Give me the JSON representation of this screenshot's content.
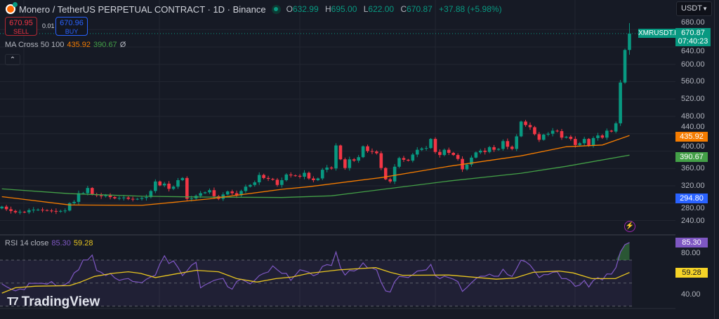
{
  "header": {
    "title": "Monero / TetherUS PERPETUAL CONTRACT · 1D · Binance",
    "ohlc": {
      "o_label": "O",
      "o": "632.99",
      "h_label": "H",
      "h": "695.00",
      "l_label": "L",
      "l": "622.00",
      "c_label": "C",
      "c": "670.87",
      "change": "+37.88 (+5.98%)"
    }
  },
  "trade": {
    "sell_price": "670.95",
    "sell_label": "SELL",
    "spread": "0.01",
    "buy_price": "670.96",
    "buy_label": "BUY"
  },
  "indicators": {
    "ma_label": "MA Cross 50 100",
    "ma50": "435.92",
    "ma100": "390.67",
    "ma_extra": "Ø",
    "rsi_label": "RSI 14 close",
    "rsi": "85.30",
    "rsi_ma": "59.28"
  },
  "collapse_icon": "chevron-up-icon",
  "currency": "USDT",
  "price_tag": {
    "symbol": "XMRUSDT.P",
    "price": "670.87",
    "countdown": "07:40:23"
  },
  "badges": {
    "ma50": "435.92",
    "ma100": "390.67",
    "blue": "294.80",
    "rsi": "85.30",
    "rsi_ma": "59.28"
  },
  "watermark": "TradingView",
  "colors": {
    "up": "#089981",
    "down": "#f23645",
    "ma50": "#f57c00",
    "ma100": "#43a047",
    "rsi": "#7e57c2",
    "rsi_ma": "#e8c520",
    "background": "#161a25"
  },
  "chart_data": {
    "type": "candlestick",
    "grid": true,
    "price_axis": {
      "ticks": [
        "680.00",
        "640.00",
        "600.00",
        "560.00",
        "520.00",
        "480.00",
        "440.00",
        "400.00",
        "360.00",
        "320.00",
        "280.00",
        "240.00"
      ],
      "ylim": [
        230,
        700
      ]
    },
    "first_open": 268,
    "closes": [
      272,
      266,
      262,
      259,
      260,
      259,
      264,
      265,
      265,
      264,
      263,
      262,
      261,
      262,
      263,
      280,
      283,
      303,
      303,
      315,
      300,
      298,
      296,
      298,
      294,
      291,
      292,
      293,
      290,
      289,
      290,
      292,
      294,
      308,
      330,
      321,
      325,
      313,
      318,
      333,
      338,
      290,
      291,
      297,
      303,
      305,
      310,
      296,
      290,
      300,
      307,
      303,
      298,
      308,
      318,
      322,
      328,
      345,
      338,
      336,
      334,
      322,
      333,
      346,
      344,
      343,
      341,
      350,
      337,
      333,
      337,
      357,
      362,
      360,
      413,
      381,
      361,
      381,
      378,
      386,
      411,
      400,
      399,
      395,
      361,
      335,
      330,
      364,
      384,
      380,
      378,
      392,
      403,
      406,
      407,
      428,
      398,
      391,
      403,
      396,
      391,
      382,
      358,
      369,
      385,
      397,
      401,
      398,
      409,
      403,
      405,
      423,
      410,
      405,
      434,
      468,
      460,
      455,
      439,
      426,
      438,
      440,
      447,
      446,
      431,
      433,
      428,
      414,
      418,
      428,
      412,
      430,
      436,
      431,
      447,
      445,
      464,
      558,
      633,
      670.87
    ],
    "last_candle": {
      "open": 632.99,
      "high": 695.0,
      "low": 622.0,
      "close": 670.87
    },
    "ma50": [
      [
        0,
        295
      ],
      [
        15,
        276
      ],
      [
        31,
        275
      ],
      [
        46,
        290
      ],
      [
        62,
        312
      ],
      [
        68,
        318
      ],
      [
        84,
        339
      ],
      [
        99,
        365
      ],
      [
        115,
        389
      ],
      [
        125,
        410
      ],
      [
        133,
        414
      ],
      [
        139,
        435.92
      ]
    ],
    "ma100": [
      [
        0,
        313
      ],
      [
        15,
        302
      ],
      [
        31,
        296
      ],
      [
        46,
        294
      ],
      [
        62,
        293
      ],
      [
        73,
        297
      ],
      [
        99,
        331
      ],
      [
        115,
        349
      ],
      [
        125,
        365
      ],
      [
        139,
        390.67
      ]
    ],
    "rsi_axis": {
      "ticks": [
        "80.00",
        "40.00"
      ],
      "bands": [
        70,
        50,
        30
      ]
    },
    "rsi": [
      49.3,
      46.9,
      44.9,
      43.3,
      44.9,
      44.3,
      49.8,
      49.8,
      49.8,
      49.8,
      49,
      51.4,
      47.8,
      47.8,
      48.8,
      51.4,
      58.9,
      61.6,
      70.1,
      70.1,
      74.4,
      61,
      59.3,
      56.5,
      58.5,
      54.5,
      52.4,
      53.4,
      54,
      51.4,
      51,
      50.3,
      53.4,
      55.3,
      56.9,
      66.6,
      73.8,
      67,
      69.3,
      63.6,
      56.5,
      60.6,
      65.6,
      68.1,
      45.9,
      48.4,
      50.4,
      52.4,
      53.4,
      54,
      46.9,
      44.7,
      51.4,
      53.4,
      51.4,
      49.3,
      52.4,
      56.5,
      58.5,
      59.7,
      65,
      61.6,
      58.5,
      58.5,
      52.4,
      56.9,
      61.6,
      60.6,
      59.4,
      56.4,
      58,
      64.5,
      66.1,
      65.3,
      77.1,
      63.5,
      57,
      61.1,
      60.5,
      62.5,
      67.6,
      63.1,
      63.1,
      61.5,
      50.7,
      43.2,
      42.2,
      51.3,
      55.8,
      55.4,
      54.8,
      57.4,
      60.5,
      60.9,
      61.5,
      66.2,
      56.4,
      53.9,
      56,
      54.8,
      53.4,
      51.3,
      42.8,
      46.3,
      50.3,
      53.9,
      56,
      56,
      57.8,
      56,
      56,
      62.1,
      57.4,
      55.8,
      62.5,
      70,
      68.6,
      65.6,
      60.5,
      54.8,
      57.4,
      57.4,
      59.4,
      59.8,
      53.9,
      53.9,
      51.7,
      47.2,
      48.3,
      52.3,
      46.6,
      52.3,
      54.8,
      52.7,
      58,
      57.8,
      63.5,
      77.1,
      83.4,
      85.3
    ],
    "rsi_ma": [
      [
        0,
        41.3
      ],
      [
        3,
        46
      ],
      [
        7.5,
        47.3
      ],
      [
        15,
        47.8
      ],
      [
        17,
        50.3
      ],
      [
        20.5,
        55.8
      ],
      [
        24.5,
        58.5
      ],
      [
        28,
        59.9
      ],
      [
        30.7,
        58.5
      ],
      [
        34,
        54.8
      ],
      [
        38.5,
        58
      ],
      [
        43,
        61.1
      ],
      [
        48,
        59.9
      ],
      [
        52,
        53.9
      ],
      [
        56.5,
        50.9
      ],
      [
        60.7,
        53.9
      ],
      [
        64.3,
        55.3
      ],
      [
        68,
        58.5
      ],
      [
        74.7,
        61.5
      ],
      [
        82.8,
        63.5
      ],
      [
        86,
        59.4
      ],
      [
        88.7,
        56.8
      ],
      [
        99,
        57
      ],
      [
        109.5,
        53.4
      ],
      [
        113.6,
        54.4
      ],
      [
        117.7,
        59.4
      ],
      [
        123.4,
        60.5
      ],
      [
        126.5,
        58.9
      ],
      [
        130.7,
        53.9
      ],
      [
        135.9,
        53.9
      ],
      [
        139,
        59.28
      ]
    ]
  }
}
